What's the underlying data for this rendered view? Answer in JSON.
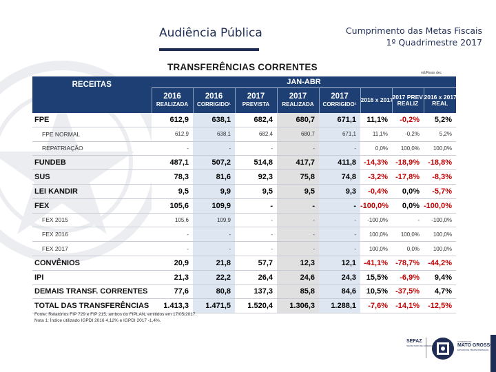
{
  "header": {
    "left_title": "Audiência Pública",
    "right_line1": "Cumprimento das Metas Fiscais",
    "right_line2": "1º Quadrimestre 2017"
  },
  "table": {
    "title": "TRANSFERÊNCIAS CORRENTES",
    "units": "mil/Reais dec",
    "period": "JAN-ABR",
    "receitas_label": "RECEITAS",
    "columns": [
      {
        "top": "2016",
        "bottom": "REALIZADA"
      },
      {
        "top": "2016",
        "bottom": "CORRIGIDO¹"
      },
      {
        "top": "2017",
        "bottom": "PREVISTA"
      },
      {
        "top": "2017",
        "bottom": "REALIZADA"
      },
      {
        "top": "2017",
        "bottom": "CORRIGIDO¹"
      },
      {
        "top": "2016 x 2017",
        "bottom": ""
      },
      {
        "top": "2017 PREV x",
        "bottom": "REALIZ"
      },
      {
        "top": "2016 x 2017",
        "bottom": "REAL"
      }
    ],
    "rows": [
      {
        "name": "FPE",
        "style": "bold",
        "values": [
          "612,9",
          "638,1",
          "682,4",
          "680,7",
          "671,1"
        ],
        "pcts": [
          "11,1%",
          "-0,2%",
          "5,2%"
        ]
      },
      {
        "name": "FPE NORMAL",
        "style": "sub",
        "values": [
          "612,9",
          "638,1",
          "682,4",
          "680,7",
          "671,1"
        ],
        "pcts": [
          "11,1%",
          "-0,2%",
          "5,2%"
        ]
      },
      {
        "name": "REPATRIAÇÃO",
        "style": "sub",
        "values": [
          "-",
          "-",
          "-",
          "-",
          "-"
        ],
        "pcts": [
          "0,0%",
          "100,0%",
          "100,0%"
        ]
      },
      {
        "name": "FUNDEB",
        "style": "bold",
        "values": [
          "487,1",
          "507,2",
          "514,8",
          "417,7",
          "411,8"
        ],
        "pcts": [
          "-14,3%",
          "-18,9%",
          "-18,8%"
        ]
      },
      {
        "name": "SUS",
        "style": "bold",
        "values": [
          "78,3",
          "81,6",
          "92,3",
          "75,8",
          "74,8"
        ],
        "pcts": [
          "-3,2%",
          "-17,8%",
          "-8,3%"
        ]
      },
      {
        "name": "LEI KANDIR",
        "style": "bold",
        "values": [
          "9,5",
          "9,9",
          "9,5",
          "9,5",
          "9,3"
        ],
        "pcts": [
          "-0,4%",
          "0,0%",
          "-5,7%"
        ]
      },
      {
        "name": "FEX",
        "style": "bold",
        "values": [
          "105,6",
          "109,9",
          "-",
          "-",
          "-"
        ],
        "pcts": [
          "-100,0%",
          "0,0%",
          "-100,0%"
        ]
      },
      {
        "name": "FEX 2015",
        "style": "sub",
        "values": [
          "105,6",
          "109,9",
          "-",
          "-",
          "-"
        ],
        "pcts": [
          "-100,0%",
          "-",
          "-100,0%"
        ]
      },
      {
        "name": "FEX 2016",
        "style": "sub",
        "values": [
          "-",
          "-",
          "-",
          "-",
          "-"
        ],
        "pcts": [
          "100,0%",
          "100,0%",
          "100,0%"
        ]
      },
      {
        "name": "FEX 2017",
        "style": "sub",
        "values": [
          "-",
          "-",
          "-",
          "-",
          "-"
        ],
        "pcts": [
          "100,0%",
          "0,0%",
          "100,0%"
        ]
      },
      {
        "name": "CONVÊNIOS",
        "style": "bold",
        "values": [
          "20,9",
          "21,8",
          "57,7",
          "12,3",
          "12,1"
        ],
        "pcts": [
          "-41,1%",
          "-78,7%",
          "-44,2%"
        ]
      },
      {
        "name": "IPI",
        "style": "bold",
        "values": [
          "21,3",
          "22,2",
          "26,4",
          "24,6",
          "24,3"
        ],
        "pcts": [
          "15,5%",
          "-6,9%",
          "9,4%"
        ]
      },
      {
        "name": "DEMAIS TRANSF. CORRENTES",
        "style": "bold",
        "values": [
          "77,6",
          "80,8",
          "137,3",
          "85,8",
          "84,6"
        ],
        "pcts": [
          "10,5%",
          "-37,5%",
          "4,7%"
        ]
      },
      {
        "name": "TOTAL DAS TRANSFERÊNCIAS",
        "style": "bold total",
        "values": [
          "1.413,3",
          "1.471,5",
          "1.520,4",
          "1.306,3",
          "1.288,1"
        ],
        "pcts": [
          "-7,6%",
          "-14,1%",
          "-12,5%"
        ]
      }
    ],
    "footnote1": "Fonte: Relatórios FIP 729 e FIP 215, ambos do FIPLAN, emitidos em 17/05/2017.",
    "footnote2": "Nota 1: Índice utilizado IGPDI 2016 4,12% e IGPDI 2017 -1,4%."
  },
  "logos": {
    "sefaz": "SEFAZ",
    "sefaz_sub": "SECRETARIA DE FAZENDA",
    "mt_top": "GOVERNO DE",
    "mt": "MATO GROSSO",
    "mt_sub": "ESTADO DE TRANSFORMAÇÃO"
  },
  "colors": {
    "header_blue": "#1d3f74",
    "title_navy": "#1f2d55",
    "negative_red": "#c00000"
  }
}
